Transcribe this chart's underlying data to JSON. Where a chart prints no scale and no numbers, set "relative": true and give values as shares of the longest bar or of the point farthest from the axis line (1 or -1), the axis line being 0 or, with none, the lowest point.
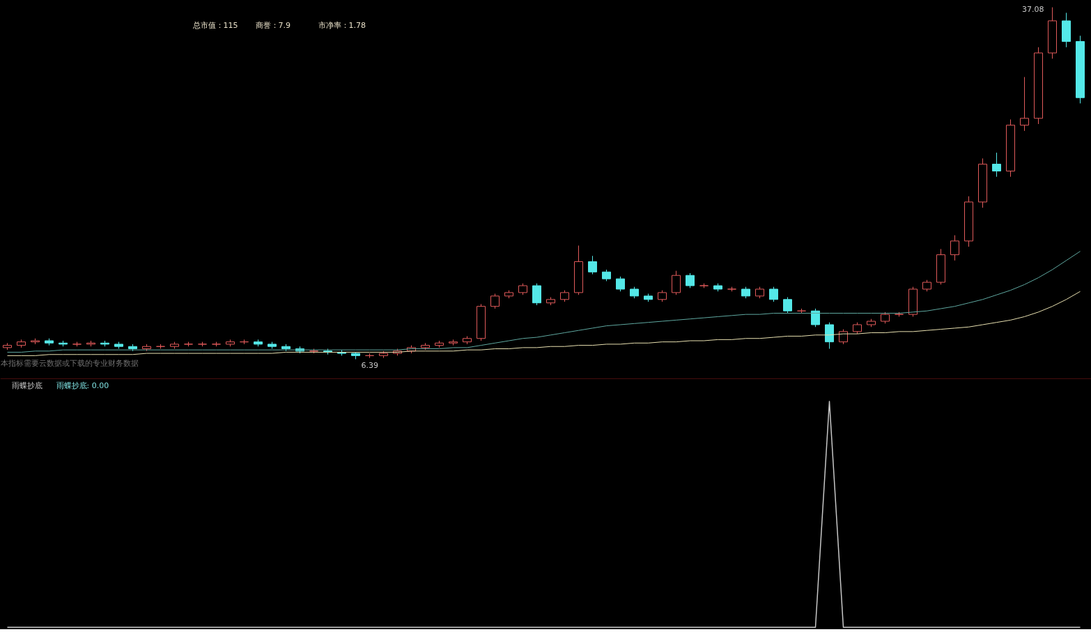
{
  "chart_data": [
    {
      "type": "candlestick",
      "tick_labels": false,
      "categories": [
        null,
        null,
        null,
        null,
        null,
        null,
        null,
        null,
        null,
        null,
        null,
        null,
        null,
        null,
        null,
        null,
        null,
        null,
        null,
        null,
        null,
        null,
        null,
        null,
        null,
        null,
        null,
        null,
        null,
        null,
        null,
        null,
        null,
        null,
        null,
        null,
        null,
        null,
        null,
        null,
        null,
        null,
        null,
        null,
        null,
        null,
        null,
        null,
        null,
        null,
        null,
        null,
        null,
        null,
        null,
        null,
        null,
        null,
        null,
        null,
        null,
        null,
        null,
        null,
        null,
        null,
        null,
        null,
        null,
        null,
        null,
        null,
        null,
        null,
        null,
        null,
        null,
        null
      ],
      "ohlc": [
        [
          7.4,
          7.8,
          7.2,
          7.6
        ],
        [
          7.6,
          8.1,
          7.4,
          7.9
        ],
        [
          7.9,
          8.2,
          7.7,
          8.0
        ],
        [
          8.0,
          8.2,
          7.6,
          7.8
        ],
        [
          7.8,
          8.0,
          7.5,
          7.7
        ],
        [
          7.7,
          7.9,
          7.5,
          7.7
        ],
        [
          7.7,
          8.0,
          7.5,
          7.8
        ],
        [
          7.8,
          8.0,
          7.5,
          7.7
        ],
        [
          7.7,
          7.9,
          7.3,
          7.5
        ],
        [
          7.5,
          7.7,
          7.1,
          7.3
        ],
        [
          7.3,
          7.7,
          7.1,
          7.5
        ],
        [
          7.5,
          7.7,
          7.3,
          7.5
        ],
        [
          7.5,
          7.9,
          7.3,
          7.7
        ],
        [
          7.7,
          7.9,
          7.5,
          7.7
        ],
        [
          7.7,
          7.9,
          7.5,
          7.7
        ],
        [
          7.7,
          7.9,
          7.5,
          7.7
        ],
        [
          7.7,
          8.1,
          7.5,
          7.9
        ],
        [
          7.9,
          8.1,
          7.7,
          7.9
        ],
        [
          7.9,
          8.1,
          7.5,
          7.7
        ],
        [
          7.7,
          7.9,
          7.3,
          7.5
        ],
        [
          7.5,
          7.7,
          7.1,
          7.3
        ],
        [
          7.3,
          7.5,
          6.9,
          7.1
        ],
        [
          7.1,
          7.3,
          6.9,
          7.1
        ],
        [
          7.1,
          7.3,
          6.8,
          7.0
        ],
        [
          7.0,
          7.2,
          6.7,
          6.9
        ],
        [
          6.9,
          7.0,
          6.39,
          6.7
        ],
        [
          6.7,
          6.9,
          6.5,
          6.7
        ],
        [
          6.7,
          7.1,
          6.5,
          6.9
        ],
        [
          6.9,
          7.3,
          6.7,
          7.1
        ],
        [
          7.1,
          7.6,
          6.9,
          7.4
        ],
        [
          7.4,
          7.8,
          7.2,
          7.6
        ],
        [
          7.6,
          8.0,
          7.4,
          7.8
        ],
        [
          7.8,
          8.1,
          7.6,
          7.9
        ],
        [
          7.9,
          8.4,
          7.7,
          8.2
        ],
        [
          8.2,
          11.2,
          8.0,
          11.0
        ],
        [
          11.0,
          12.1,
          10.8,
          11.9
        ],
        [
          11.9,
          12.4,
          11.7,
          12.2
        ],
        [
          12.2,
          13.0,
          12.0,
          12.8
        ],
        [
          12.8,
          13.0,
          11.1,
          11.3
        ],
        [
          11.3,
          11.8,
          11.1,
          11.6
        ],
        [
          11.6,
          12.4,
          11.4,
          12.2
        ],
        [
          12.2,
          16.3,
          12.0,
          14.9
        ],
        [
          14.9,
          15.4,
          13.8,
          14.0
        ],
        [
          14.0,
          14.2,
          13.2,
          13.4
        ],
        [
          13.4,
          13.6,
          12.3,
          12.5
        ],
        [
          12.5,
          12.7,
          11.7,
          11.9
        ],
        [
          11.9,
          12.1,
          11.4,
          11.6
        ],
        [
          11.6,
          12.4,
          11.4,
          12.2
        ],
        [
          12.2,
          14.1,
          12.0,
          13.7
        ],
        [
          13.7,
          13.9,
          12.6,
          12.8
        ],
        [
          12.8,
          13.0,
          12.6,
          12.8
        ],
        [
          12.8,
          13.0,
          12.3,
          12.5
        ],
        [
          12.5,
          12.7,
          12.3,
          12.5
        ],
        [
          12.5,
          12.7,
          11.7,
          11.9
        ],
        [
          11.9,
          12.7,
          11.7,
          12.5
        ],
        [
          12.5,
          12.7,
          11.4,
          11.6
        ],
        [
          11.6,
          11.8,
          10.4,
          10.6
        ],
        [
          10.6,
          10.8,
          10.4,
          10.6
        ],
        [
          10.6,
          10.8,
          9.2,
          9.4
        ],
        [
          9.4,
          9.6,
          7.3,
          7.9
        ],
        [
          7.9,
          9.0,
          7.7,
          8.8
        ],
        [
          8.8,
          9.6,
          8.6,
          9.4
        ],
        [
          9.4,
          9.9,
          9.2,
          9.7
        ],
        [
          9.7,
          10.5,
          9.5,
          10.3
        ],
        [
          10.3,
          10.5,
          10.1,
          10.3
        ],
        [
          10.3,
          12.7,
          10.1,
          12.5
        ],
        [
          12.5,
          13.3,
          12.3,
          13.1
        ],
        [
          13.1,
          16.0,
          12.9,
          15.5
        ],
        [
          15.5,
          17.2,
          15.0,
          16.7
        ],
        [
          16.7,
          20.6,
          16.2,
          20.1
        ],
        [
          20.1,
          23.9,
          19.6,
          23.4
        ],
        [
          23.4,
          24.4,
          22.3,
          22.8
        ],
        [
          22.8,
          27.3,
          22.3,
          26.8
        ],
        [
          26.8,
          31.0,
          26.3,
          27.4
        ],
        [
          27.4,
          33.6,
          26.9,
          33.1
        ],
        [
          33.1,
          37.08,
          32.6,
          35.9
        ],
        [
          35.9,
          36.6,
          33.6,
          34.1
        ],
        [
          34.1,
          34.6,
          28.7,
          29.2
        ]
      ],
      "colors": [
        "#e05a5a",
        "#e05a5a",
        "#e05a5a",
        "#54e8e8",
        "#54e8e8",
        "#e05a5a",
        "#e05a5a",
        "#54e8e8",
        "#54e8e8",
        "#54e8e8",
        "#e05a5a",
        "#e05a5a",
        "#e05a5a",
        "#e05a5a",
        "#e05a5a",
        "#e05a5a",
        "#e05a5a",
        "#e05a5a",
        "#54e8e8",
        "#54e8e8",
        "#54e8e8",
        "#54e8e8",
        "#e05a5a",
        "#54e8e8",
        "#54e8e8",
        "#54e8e8",
        "#e05a5a",
        "#e05a5a",
        "#e05a5a",
        "#e05a5a",
        "#e05a5a",
        "#e05a5a",
        "#e05a5a",
        "#e05a5a",
        "#e05a5a",
        "#e05a5a",
        "#e05a5a",
        "#e05a5a",
        "#54e8e8",
        "#e05a5a",
        "#e05a5a",
        "#e05a5a",
        "#54e8e8",
        "#54e8e8",
        "#54e8e8",
        "#54e8e8",
        "#54e8e8",
        "#e05a5a",
        "#e05a5a",
        "#54e8e8",
        "#e05a5a",
        "#54e8e8",
        "#e05a5a",
        "#54e8e8",
        "#e05a5a",
        "#54e8e8",
        "#54e8e8",
        "#e05a5a",
        "#54e8e8",
        "#54e8e8",
        "#e05a5a",
        "#e05a5a",
        "#e05a5a",
        "#e05a5a",
        "#e05a5a",
        "#e05a5a",
        "#e05a5a",
        "#e05a5a",
        "#e05a5a",
        "#e05a5a",
        "#e05a5a",
        "#54e8e8",
        "#e05a5a",
        "#e05a5a",
        "#e05a5a",
        "#e05a5a",
        "#54e8e8",
        "#54e8e8"
      ],
      "series": [
        {
          "type": "line",
          "color": "#e8e0b0",
          "values": [
            6.7,
            6.7,
            6.7,
            6.8,
            6.8,
            6.8,
            6.8,
            6.8,
            6.8,
            6.8,
            6.9,
            6.9,
            6.9,
            6.9,
            6.9,
            6.9,
            6.9,
            6.9,
            6.9,
            6.9,
            7.0,
            7.0,
            7.0,
            7.0,
            7.0,
            7.0,
            7.0,
            7.0,
            7.0,
            7.1,
            7.1,
            7.1,
            7.1,
            7.2,
            7.2,
            7.3,
            7.3,
            7.4,
            7.4,
            7.5,
            7.5,
            7.6,
            7.6,
            7.7,
            7.7,
            7.8,
            7.8,
            7.9,
            7.9,
            8.0,
            8.0,
            8.1,
            8.1,
            8.2,
            8.2,
            8.3,
            8.4,
            8.4,
            8.5,
            8.5,
            8.6,
            8.6,
            8.7,
            8.7,
            8.8,
            8.8,
            8.9,
            9.0,
            9.1,
            9.2,
            9.4,
            9.6,
            9.8,
            10.1,
            10.5,
            11.0,
            11.6,
            12.3
          ]
        },
        {
          "type": "line",
          "color": "#5fa8a0",
          "values": [
            7.0,
            7.0,
            7.1,
            7.1,
            7.2,
            7.2,
            7.2,
            7.2,
            7.2,
            7.2,
            7.2,
            7.2,
            7.2,
            7.2,
            7.2,
            7.2,
            7.2,
            7.2,
            7.2,
            7.2,
            7.2,
            7.2,
            7.2,
            7.2,
            7.2,
            7.2,
            7.2,
            7.2,
            7.2,
            7.3,
            7.3,
            7.3,
            7.4,
            7.4,
            7.6,
            7.8,
            8.0,
            8.2,
            8.3,
            8.5,
            8.7,
            8.9,
            9.1,
            9.3,
            9.4,
            9.5,
            9.6,
            9.7,
            9.8,
            9.9,
            10.0,
            10.1,
            10.2,
            10.3,
            10.3,
            10.4,
            10.4,
            10.4,
            10.4,
            10.4,
            10.4,
            10.4,
            10.4,
            10.4,
            10.4,
            10.5,
            10.6,
            10.8,
            11.0,
            11.3,
            11.6,
            12.0,
            12.4,
            12.9,
            13.5,
            14.2,
            15.0,
            15.8
          ]
        }
      ],
      "annotations": [
        "总市值：115",
        "商誉：7.9",
        "市净率：1.78",
        "本指标需要云数据或下载的专业财务数据",
        "37.08",
        "6.39"
      ]
    },
    {
      "type": "line",
      "relative": true,
      "tick_labels": false,
      "title": "雨蝶抄底",
      "color": "#c8c8c8",
      "categories": [
        null,
        null,
        null,
        null,
        null,
        null,
        null,
        null,
        null,
        null,
        null,
        null,
        null,
        null,
        null,
        null,
        null,
        null,
        null,
        null,
        null,
        null,
        null,
        null,
        null,
        null,
        null,
        null,
        null,
        null,
        null,
        null,
        null,
        null,
        null,
        null,
        null,
        null,
        null,
        null,
        null,
        null,
        null,
        null,
        null,
        null,
        null,
        null,
        null,
        null,
        null,
        null,
        null,
        null,
        null,
        null,
        null,
        null,
        null,
        null,
        null,
        null,
        null,
        null,
        null,
        null,
        null,
        null,
        null,
        null,
        null,
        null,
        null,
        null,
        null,
        null,
        null,
        null
      ],
      "values": [
        0,
        0,
        0,
        0,
        0,
        0,
        0,
        0,
        0,
        0,
        0,
        0,
        0,
        0,
        0,
        0,
        0,
        0,
        0,
        0,
        0,
        0,
        0,
        0,
        0,
        0,
        0,
        0,
        0,
        0,
        0,
        0,
        0,
        0,
        0,
        0,
        0,
        0,
        0,
        0,
        0,
        0,
        0,
        0,
        0,
        0,
        0,
        0,
        0,
        0,
        0,
        0,
        0,
        0,
        0,
        0,
        0,
        0,
        0,
        1,
        0,
        0,
        0,
        0,
        0,
        0,
        0,
        0,
        0,
        0,
        0,
        0,
        0,
        0,
        0,
        0,
        0,
        0
      ],
      "annotations": [
        "雨蝶抄底: 0.00"
      ]
    }
  ]
}
